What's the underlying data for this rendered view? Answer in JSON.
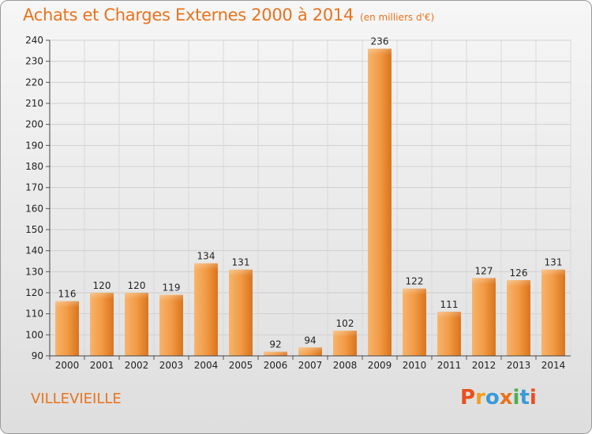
{
  "header": {
    "title": "Achats et Charges Externes 2000 à 2014",
    "unit": "(en milliers d'€)"
  },
  "footer": {
    "commune": "VILLEVIEILLE",
    "logo_letters": [
      "P",
      "r",
      "o",
      "x",
      "i",
      "t",
      "i"
    ],
    "logo_colors": [
      "#e8501c",
      "#f0a020",
      "#3a9ad9",
      "#e8731c",
      "#4caf50",
      "#3a9ad9",
      "#e8501c"
    ]
  },
  "chart_data": {
    "type": "bar",
    "title": "Achats et Charges Externes 2000 à 2014",
    "categories": [
      "2000",
      "2001",
      "2002",
      "2003",
      "2004",
      "2005",
      "2006",
      "2007",
      "2008",
      "2009",
      "2010",
      "2011",
      "2012",
      "2013",
      "2014"
    ],
    "values": [
      116,
      120,
      120,
      119,
      134,
      131,
      92,
      94,
      102,
      236,
      122,
      111,
      127,
      126,
      131
    ],
    "ylim": [
      90,
      240
    ],
    "yticks": [
      90,
      100,
      110,
      120,
      130,
      140,
      150,
      160,
      170,
      180,
      190,
      200,
      210,
      220,
      230,
      240
    ],
    "grid": true,
    "bar_color": "#f29b45",
    "bar_color_dark": "#d9741c"
  }
}
